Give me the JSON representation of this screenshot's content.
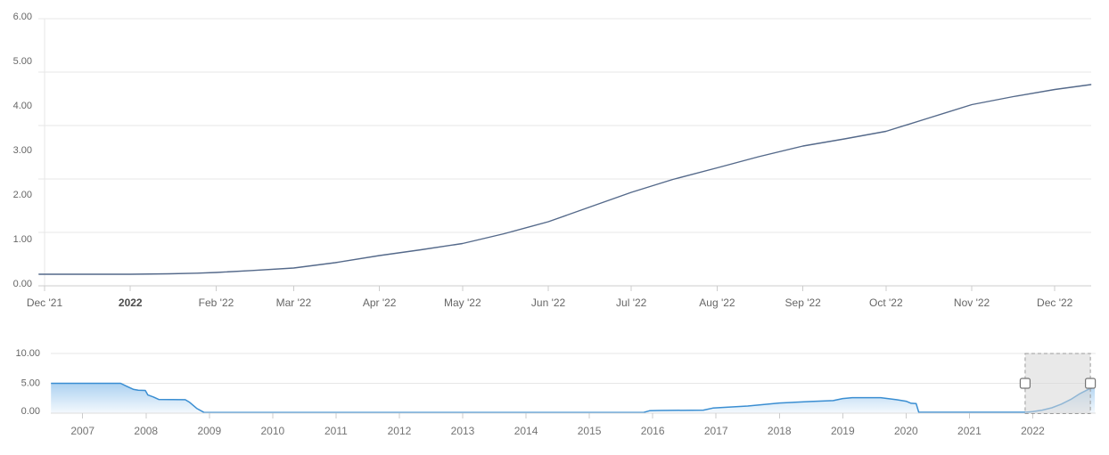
{
  "chart_data": [
    {
      "id": "main-price-chart",
      "type": "line",
      "title": "",
      "xlabel": "",
      "ylabel": "",
      "x_unit": "days since 2021-12-01",
      "ylim": [
        0,
        6
      ],
      "grid": true,
      "legend": false,
      "line_color": "#54698a",
      "grid_color": "#e7e7e7",
      "axis_color": "#cccccc",
      "label_color": "#666666",
      "bold_label_color": "#4c4c4c",
      "y_tick_labels": [
        "6.00",
        "5.00",
        "4.00",
        "3.00",
        "2.00",
        "1.00",
        "0.00"
      ],
      "x_tick_labels": [
        {
          "label": "Dec '21",
          "bold": false
        },
        {
          "label": "2022",
          "bold": true
        },
        {
          "label": "Feb '22",
          "bold": false
        },
        {
          "label": "Mar '22",
          "bold": false
        },
        {
          "label": "Apr '22",
          "bold": false
        },
        {
          "label": "May '22",
          "bold": false
        },
        {
          "label": "Jun '22",
          "bold": false
        },
        {
          "label": "Jul '22",
          "bold": false
        },
        {
          "label": "Aug '22",
          "bold": false
        },
        {
          "label": "Sep '22",
          "bold": false
        },
        {
          "label": "Oct '22",
          "bold": false
        },
        {
          "label": "Nov '22",
          "bold": false
        },
        {
          "label": "Dec '22",
          "bold": false
        }
      ],
      "series": [
        {
          "name": "value",
          "points": [
            [
              -2,
              0.26
            ],
            [
              0,
              0.26
            ],
            [
              20,
              0.26
            ],
            [
              31,
              0.26
            ],
            [
              45,
              0.27
            ],
            [
              55,
              0.285
            ],
            [
              62,
              0.3
            ],
            [
              75,
              0.345
            ],
            [
              90,
              0.4
            ],
            [
              105,
              0.52
            ],
            [
              121,
              0.68
            ],
            [
              136,
              0.81
            ],
            [
              151,
              0.95
            ],
            [
              166,
              1.17
            ],
            [
              182,
              1.44
            ],
            [
              197,
              1.77
            ],
            [
              212,
              2.1
            ],
            [
              227,
              2.39
            ],
            [
              243,
              2.65
            ],
            [
              258,
              2.9
            ],
            [
              274,
              3.14
            ],
            [
              289,
              3.3
            ],
            [
              304,
              3.47
            ],
            [
              319,
              3.76
            ],
            [
              335,
              4.07
            ],
            [
              350,
              4.25
            ],
            [
              365,
              4.41
            ],
            [
              378,
              4.52
            ]
          ]
        }
      ]
    },
    {
      "id": "navigator",
      "type": "area",
      "title": "",
      "x_unit": "year",
      "ylim": [
        0,
        10
      ],
      "grid": true,
      "legend": false,
      "line_color": "#3a8ed2",
      "area_color": "#4a9be0",
      "grid_color": "#e7e7e7",
      "axis_color": "#cccccc",
      "label_color": "#737373",
      "mask_fill": "rgba(215,215,215,0.55)",
      "mask_border": "#9b9b9b",
      "handle_fill": "#ffffff",
      "handle_border": "#757575",
      "y_tick_labels": [
        "10.00",
        "5.00",
        "0.00"
      ],
      "x_tick_labels": [
        "2007",
        "2008",
        "2009",
        "2010",
        "2011",
        "2012",
        "2013",
        "2014",
        "2015",
        "2016",
        "2017",
        "2018",
        "2019",
        "2020",
        "2021",
        "2022"
      ],
      "series": [
        {
          "name": "value",
          "points": [
            [
              2006.5,
              5.0
            ],
            [
              2007.6,
              5.0
            ],
            [
              2007.7,
              4.5
            ],
            [
              2007.8,
              4.0
            ],
            [
              2007.88,
              3.85
            ],
            [
              2007.99,
              3.8
            ],
            [
              2008.03,
              3.05
            ],
            [
              2008.12,
              2.7
            ],
            [
              2008.2,
              2.3
            ],
            [
              2008.62,
              2.25
            ],
            [
              2008.69,
              1.8
            ],
            [
              2008.8,
              0.8
            ],
            [
              2008.92,
              0.1
            ],
            [
              2015.85,
              0.1
            ],
            [
              2015.95,
              0.4
            ],
            [
              2016.1,
              0.45
            ],
            [
              2016.8,
              0.5
            ],
            [
              2016.95,
              0.85
            ],
            [
              2017.1,
              0.95
            ],
            [
              2017.5,
              1.2
            ],
            [
              2018.0,
              1.7
            ],
            [
              2018.5,
              1.95
            ],
            [
              2018.85,
              2.1
            ],
            [
              2019.0,
              2.45
            ],
            [
              2019.15,
              2.6
            ],
            [
              2019.6,
              2.6
            ],
            [
              2019.85,
              2.25
            ],
            [
              2020.0,
              2.0
            ],
            [
              2020.08,
              1.65
            ],
            [
              2020.16,
              1.6
            ],
            [
              2020.2,
              0.15
            ],
            [
              2021.88,
              0.15
            ],
            [
              2022.0,
              0.25
            ],
            [
              2022.15,
              0.5
            ],
            [
              2022.3,
              0.9
            ],
            [
              2022.45,
              1.5
            ],
            [
              2022.6,
              2.3
            ],
            [
              2022.75,
              3.3
            ],
            [
              2022.88,
              4.0
            ],
            [
              2022.98,
              4.4
            ]
          ]
        }
      ],
      "selection": {
        "start_year": 2021.88,
        "end_year": 2022.91
      }
    }
  ]
}
